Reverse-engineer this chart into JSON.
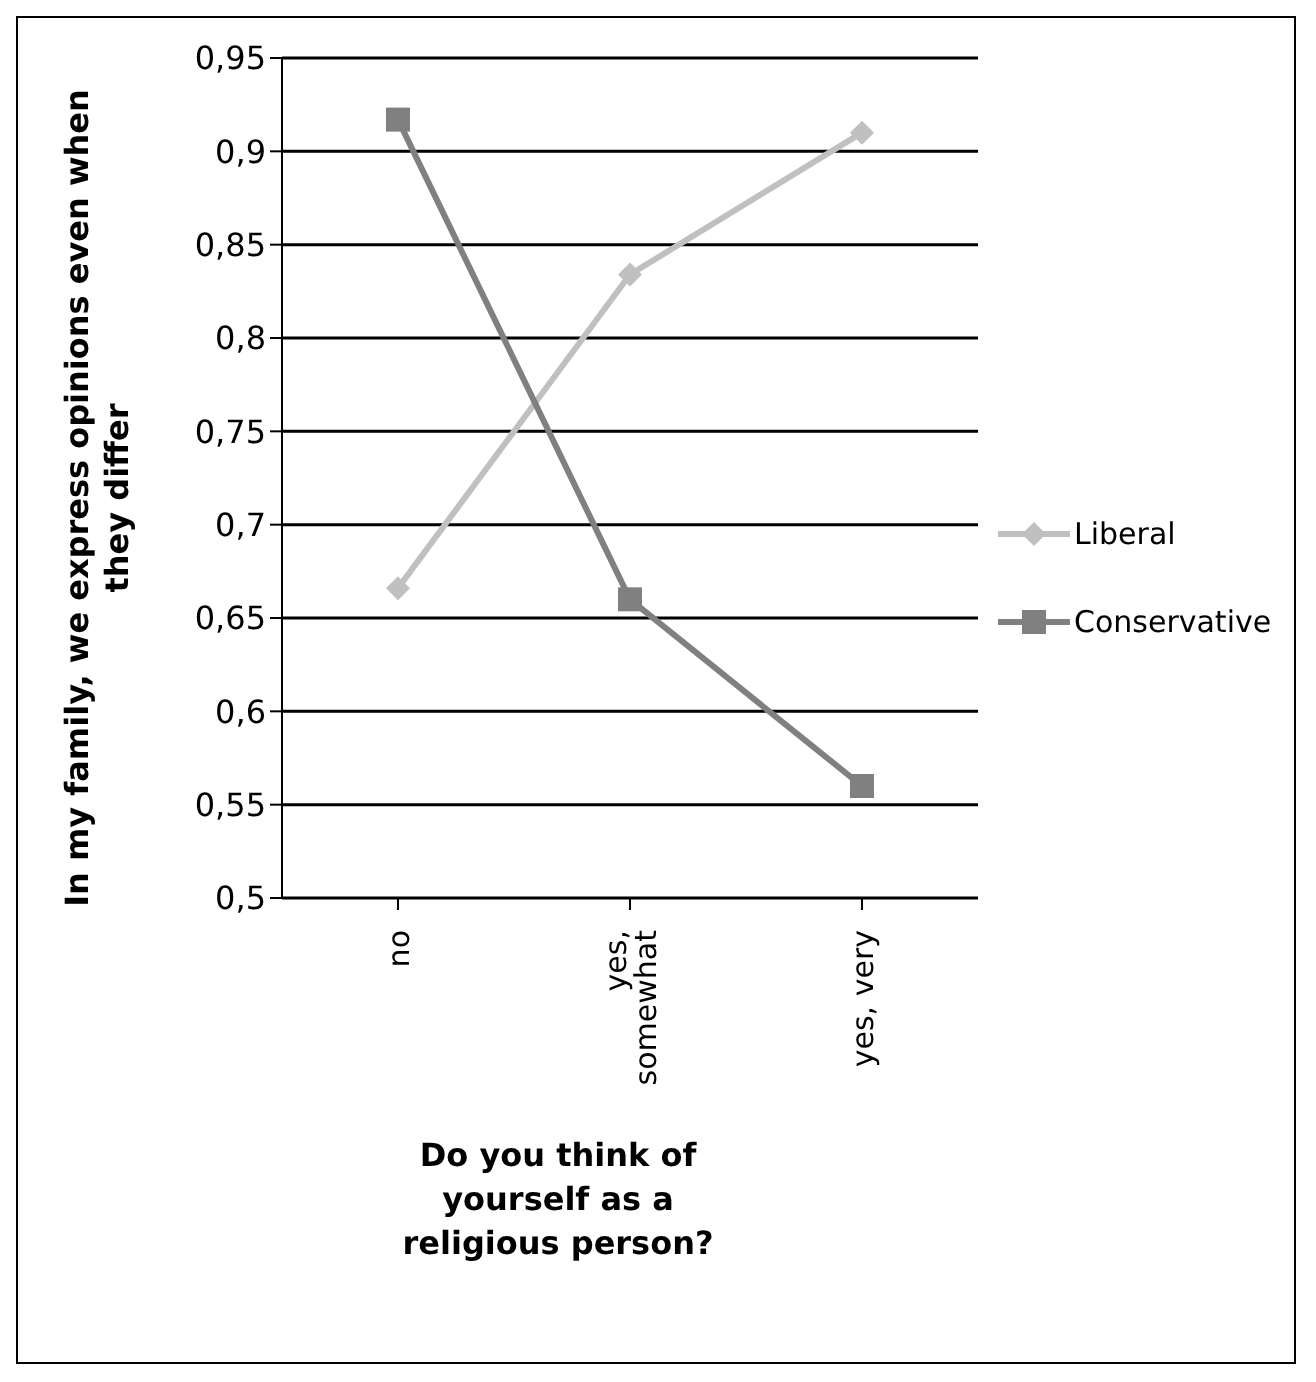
{
  "chart_data": {
    "type": "line",
    "xlabel": "Do you think of yourself as a religious person?",
    "ylabel": "In my family, we express opinions even when they differ",
    "categories": [
      "no",
      "yes, somewhat",
      "yes, very"
    ],
    "series": [
      {
        "name": "Liberal",
        "color": "#c0c0c0",
        "marker": "diamond",
        "values": [
          0.666,
          0.834,
          0.91
        ]
      },
      {
        "name": "Conservative",
        "color": "#808080",
        "marker": "square",
        "values": [
          0.917,
          0.66,
          0.56
        ]
      }
    ],
    "ylim": [
      0.5,
      0.95
    ],
    "yticks": [
      {
        "value": 0.5,
        "label": "0,5"
      },
      {
        "value": 0.55,
        "label": "0,55"
      },
      {
        "value": 0.6,
        "label": "0,6"
      },
      {
        "value": 0.65,
        "label": "0,65"
      },
      {
        "value": 0.7,
        "label": "0,7"
      },
      {
        "value": 0.75,
        "label": "0,75"
      },
      {
        "value": 0.8,
        "label": "0,8"
      },
      {
        "value": 0.85,
        "label": "0,85"
      },
      {
        "value": 0.9,
        "label": "0,9"
      },
      {
        "value": 0.95,
        "label": "0,95"
      }
    ],
    "grid": "y",
    "legend": "right",
    "line_style": "solid"
  }
}
